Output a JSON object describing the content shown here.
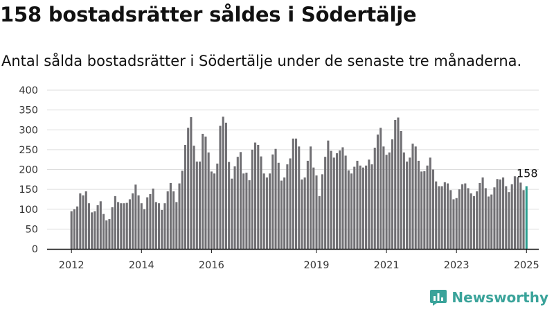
{
  "title": "158 bostadsrätter såldes i Södertälje",
  "subtitle": "Antal sålda bostadsrätter i Södertälje under de senaste tre månaderna.",
  "brand": {
    "name": "Newsworthy",
    "icon": "newsworthy-logo-icon"
  },
  "colors": {
    "bar": "#717074",
    "highlight": "#2a9d8f",
    "grid": "#dddddd",
    "axis": "#111111",
    "brand": "#3aa39a"
  },
  "chart_data": {
    "type": "bar",
    "title": "",
    "xlabel": "",
    "ylabel": "",
    "ylim": [
      0,
      400
    ],
    "yticks": [
      0,
      50,
      100,
      150,
      200,
      250,
      300,
      350,
      400
    ],
    "grid": true,
    "start": "2012-01",
    "xtick_labels": [
      {
        "label": "2012",
        "month": "2012-01"
      },
      {
        "label": "2014",
        "month": "2014-01"
      },
      {
        "label": "2016",
        "month": "2016-01"
      },
      {
        "label": "2019",
        "month": "2019-01"
      },
      {
        "label": "2021",
        "month": "2021-01"
      },
      {
        "label": "2023",
        "month": "2023-01"
      },
      {
        "label": "2025",
        "month": "2025-01"
      }
    ],
    "values": [
      95,
      100,
      107,
      140,
      135,
      145,
      115,
      92,
      95,
      110,
      120,
      88,
      72,
      75,
      105,
      133,
      118,
      115,
      115,
      116,
      125,
      140,
      162,
      135,
      115,
      100,
      130,
      138,
      152,
      118,
      115,
      98,
      115,
      145,
      166,
      145,
      118,
      165,
      197,
      262,
      305,
      332,
      260,
      220,
      220,
      290,
      283,
      243,
      195,
      190,
      215,
      310,
      333,
      318,
      219,
      177,
      208,
      232,
      244,
      190,
      192,
      173,
      250,
      268,
      262,
      233,
      190,
      180,
      190,
      238,
      252,
      217,
      172,
      180,
      213,
      228,
      278,
      278,
      258,
      175,
      180,
      222,
      258,
      205,
      185,
      133,
      188,
      232,
      273,
      247,
      230,
      241,
      248,
      256,
      235,
      198,
      190,
      207,
      222,
      210,
      205,
      210,
      225,
      213,
      255,
      288,
      305,
      258,
      237,
      243,
      276,
      325,
      331,
      297,
      243,
      220,
      230,
      265,
      258,
      222,
      195,
      196,
      210,
      230,
      200,
      170,
      158,
      158,
      168,
      165,
      148,
      125,
      128,
      150,
      163,
      165,
      153,
      140,
      133,
      145,
      166,
      180,
      153,
      132,
      137,
      155,
      176,
      175,
      180,
      158,
      143,
      163,
      183,
      181,
      167,
      148,
      158
    ],
    "highlight_last": true,
    "data_labels": [
      {
        "index": "last",
        "text": "158"
      }
    ]
  }
}
